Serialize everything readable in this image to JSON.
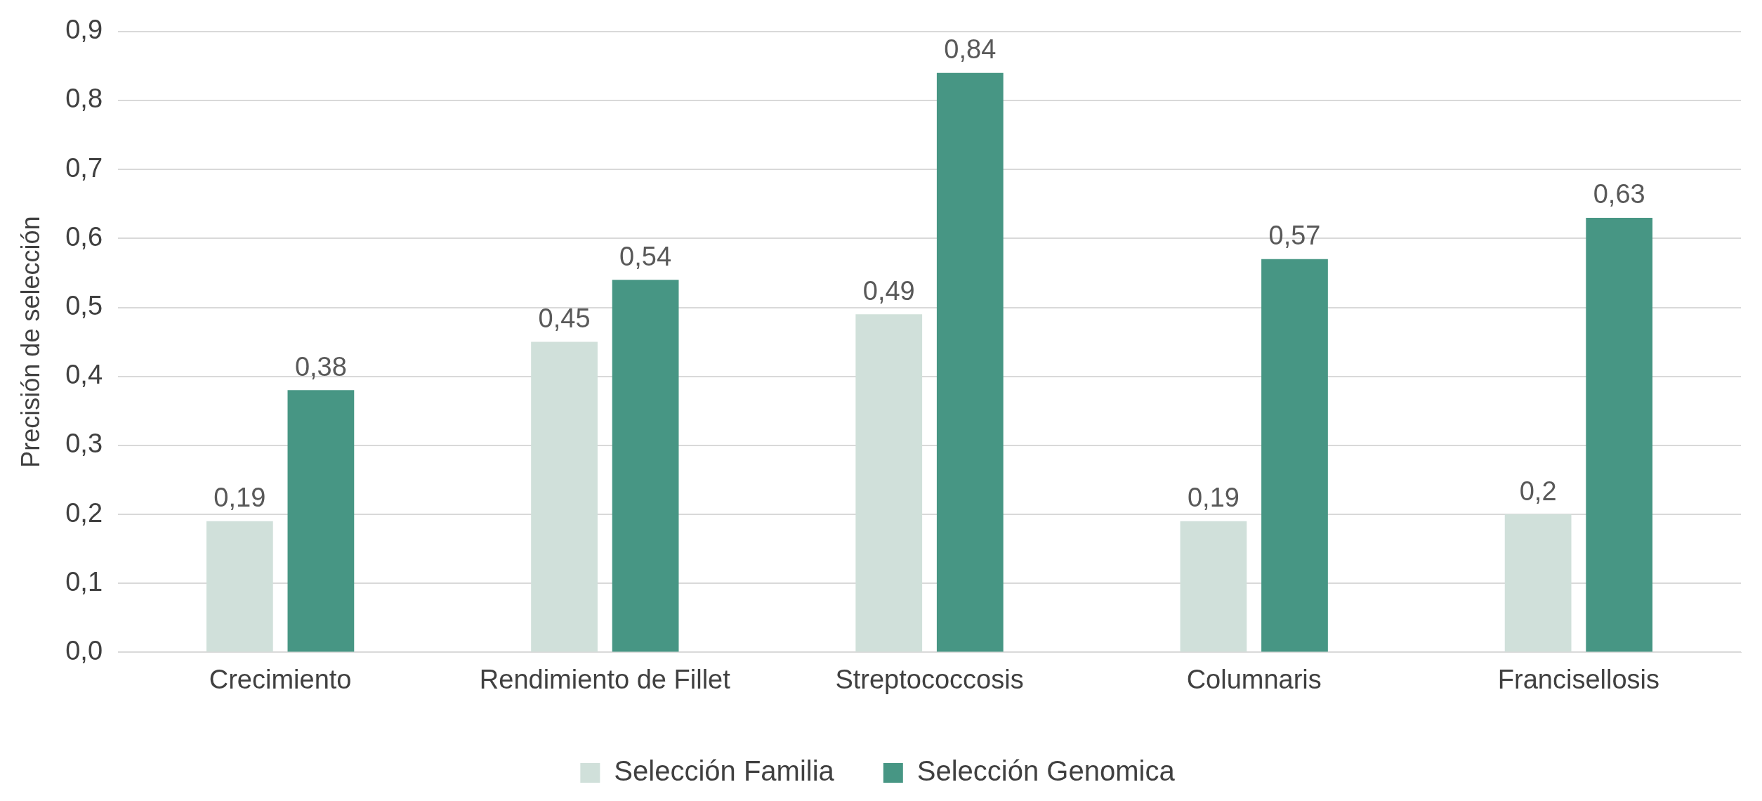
{
  "chart_data": {
    "type": "bar",
    "ylabel": "Precisión de selección",
    "categories": [
      "Crecimiento",
      "Rendimiento de Fillet",
      "Streptococcosis",
      "Columnaris",
      "Francisellosis"
    ],
    "series": [
      {
        "name": "Selección Familia",
        "color": "#d0e0da",
        "values": [
          0.19,
          0.45,
          0.49,
          0.19,
          0.2
        ],
        "value_labels": [
          "0,19",
          "0,45",
          "0,49",
          "0,19",
          "0,2"
        ]
      },
      {
        "name": "Selección Genomica",
        "color": "#479684",
        "values": [
          0.38,
          0.54,
          0.84,
          0.57,
          0.63
        ],
        "value_labels": [
          "0,38",
          "0,54",
          "0,84",
          "0,57",
          "0,63"
        ]
      }
    ],
    "ylim": [
      0,
      0.9
    ],
    "yticks": [
      {
        "value": 0,
        "label": "0,0"
      },
      {
        "value": 0.1,
        "label": "0,1"
      },
      {
        "value": 0.2,
        "label": "0,2"
      },
      {
        "value": 0.3,
        "label": "0,3"
      },
      {
        "value": 0.4,
        "label": "0,4"
      },
      {
        "value": 0.5,
        "label": "0,5"
      },
      {
        "value": 0.6,
        "label": "0,6"
      },
      {
        "value": 0.7,
        "label": "0,7"
      },
      {
        "value": 0.8,
        "label": "0,8"
      },
      {
        "value": 0.9,
        "label": "0,9"
      }
    ],
    "grid": "y",
    "legend": "bottom"
  }
}
